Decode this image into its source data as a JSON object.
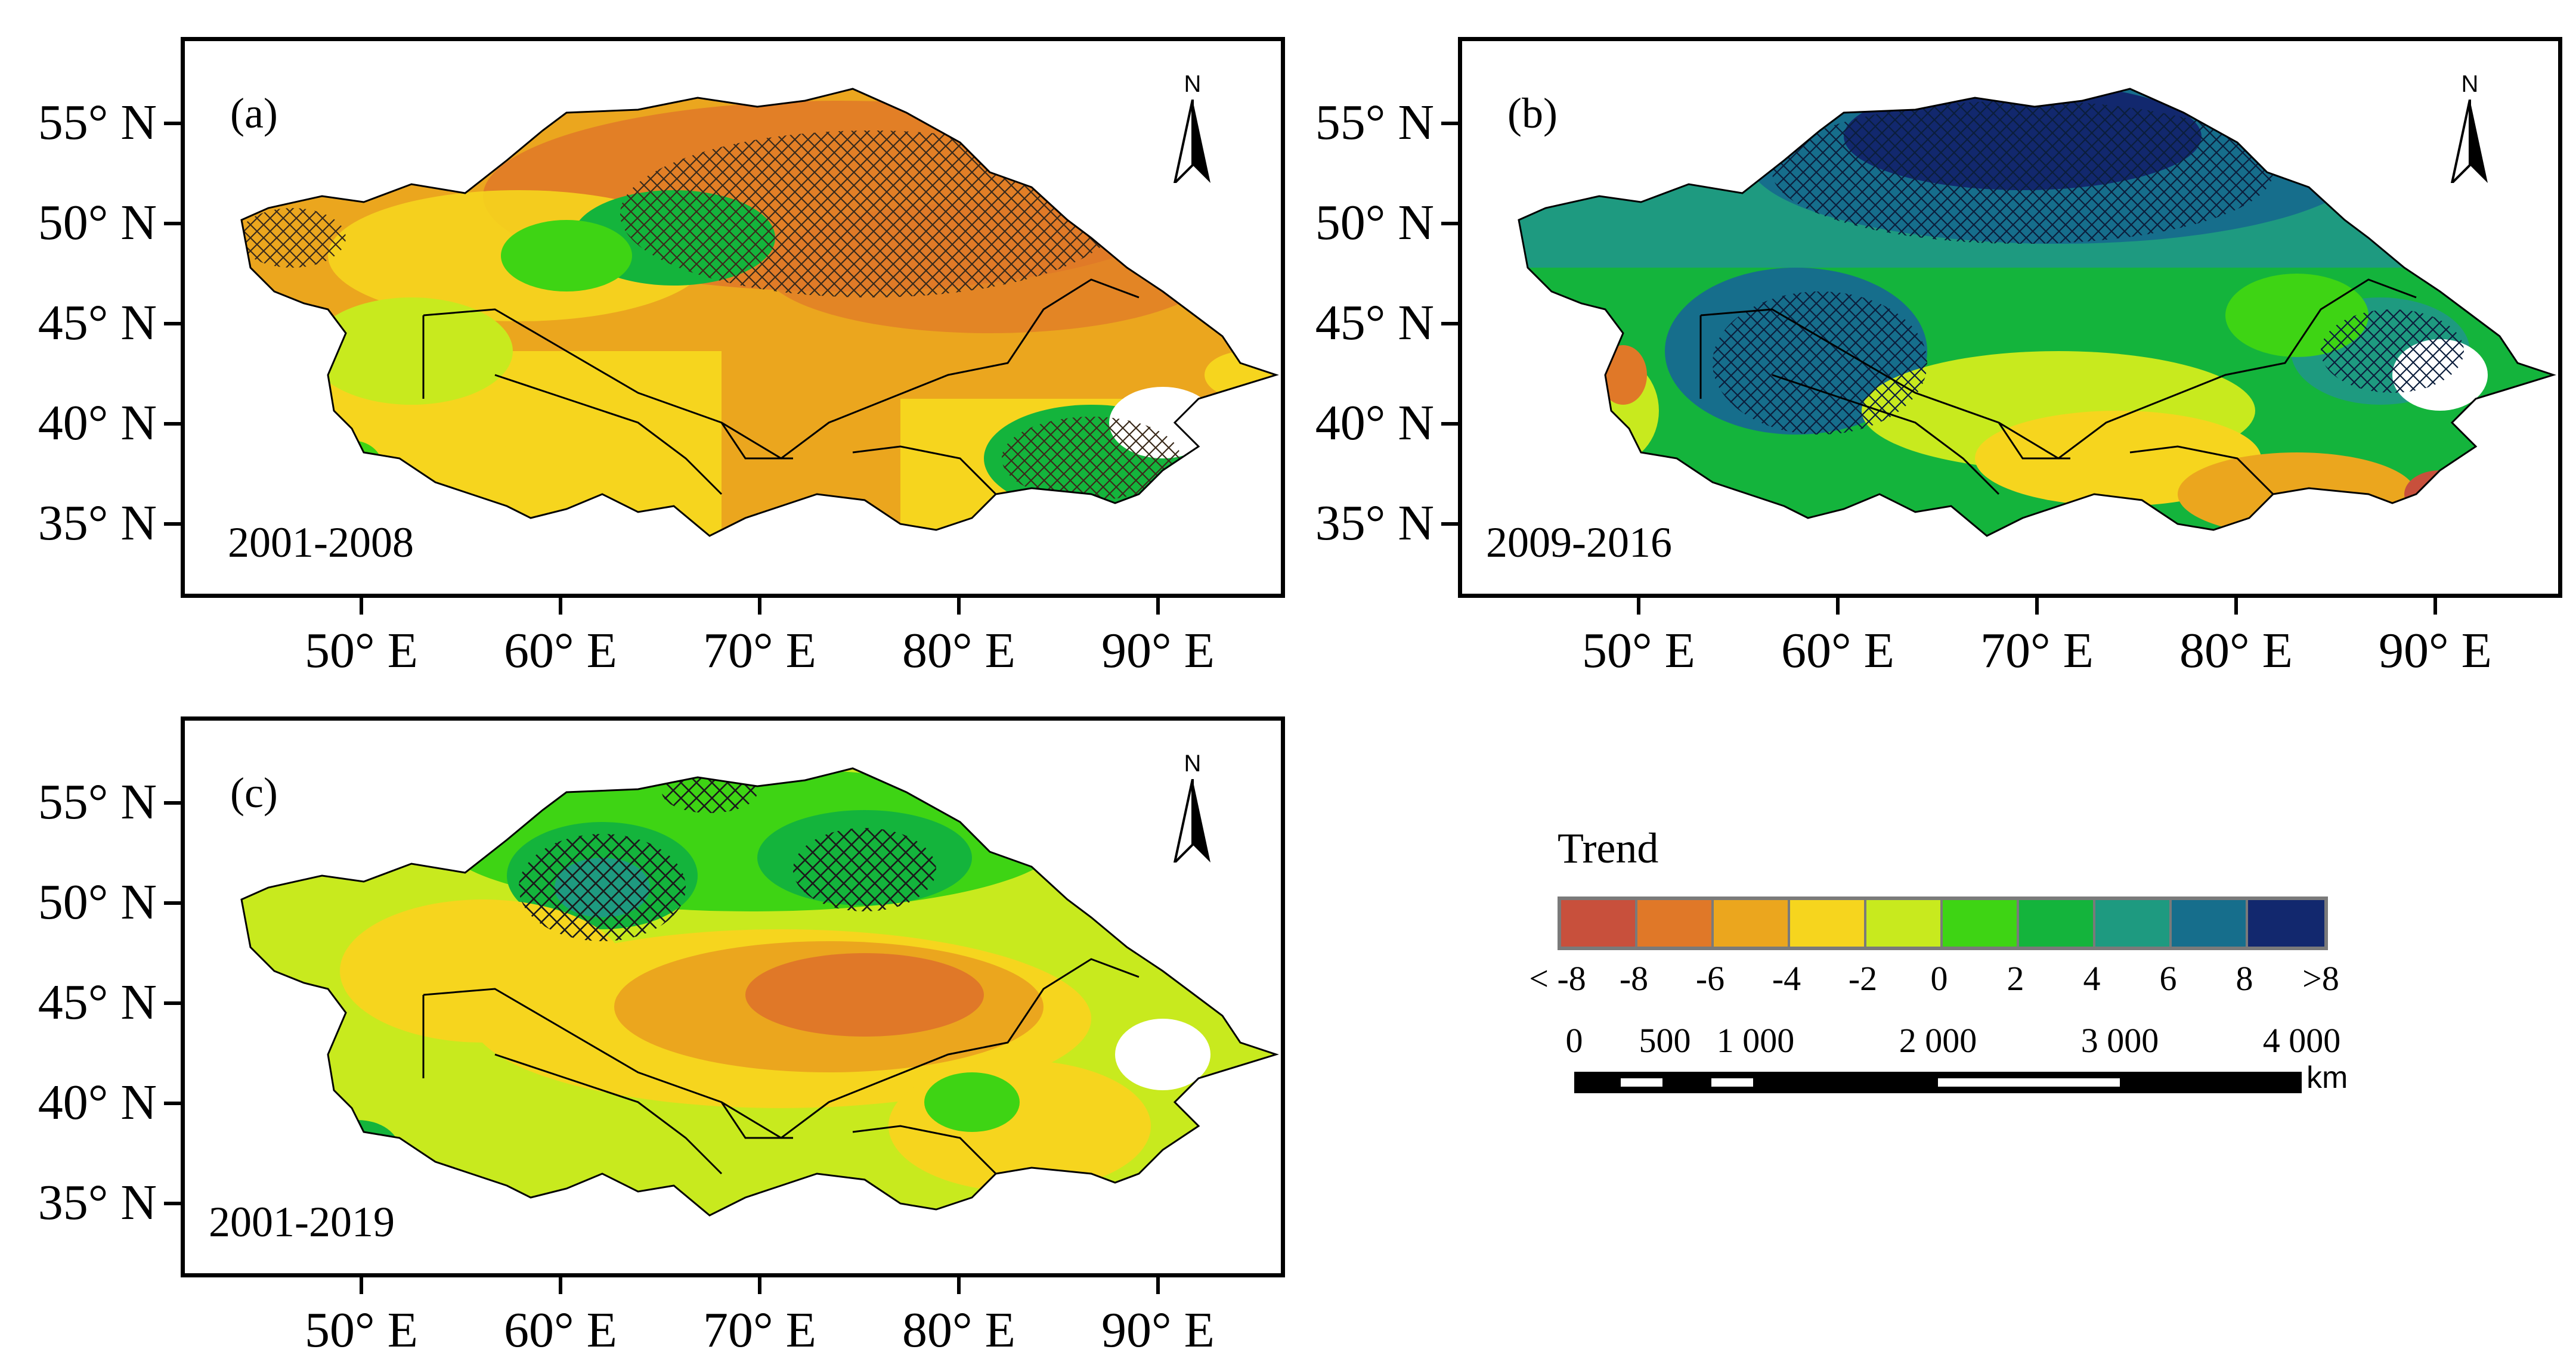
{
  "figure": {
    "latitude_labels": [
      "55° N",
      "50° N",
      "45° N",
      "40° N",
      "35° N"
    ],
    "longitude_labels": [
      "50° E",
      "60° E",
      "70° E",
      "80° E",
      "90° E"
    ],
    "north_arrow_letter": "N",
    "panels": [
      {
        "label": "(a)",
        "period": "2001-2008",
        "dominant_trend": "negative",
        "significance_hatching": "north-east and northern region"
      },
      {
        "label": "(b)",
        "period": "2009-2016",
        "dominant_trend": "positive",
        "significance_hatching": "northern and central region"
      },
      {
        "label": "(c)",
        "period": "2001-2019",
        "dominant_trend": "mixed",
        "significance_hatching": "scattered"
      }
    ]
  },
  "legend": {
    "title": "Trend",
    "classes": [
      {
        "range": "< -8",
        "color": "#c8503c"
      },
      {
        "range": "-8 to -6",
        "color": "#e07828"
      },
      {
        "range": "-6 to -4",
        "color": "#eba61e"
      },
      {
        "range": "-4 to -2",
        "color": "#f6d51e"
      },
      {
        "range": "-2 to 0",
        "color": "#c8ea1e"
      },
      {
        "range": "0 to 2",
        "color": "#3ed414"
      },
      {
        "range": "2 to 4",
        "color": "#14b43c"
      },
      {
        "range": "4 to 6",
        "color": "#1e9a80"
      },
      {
        "range": "6 to 8",
        "color": "#166e8c"
      },
      {
        "range": "> 8",
        "color": "#12286e"
      }
    ],
    "tick_labels": [
      "< -8",
      "-8",
      "-6",
      "-4",
      "-2",
      "0",
      "2",
      "4",
      "6",
      "8",
      ">8"
    ]
  },
  "scale_bar": {
    "labels": [
      "0",
      "500",
      "1 000",
      "2 000",
      "3 000",
      "4 000"
    ],
    "unit": "km"
  }
}
